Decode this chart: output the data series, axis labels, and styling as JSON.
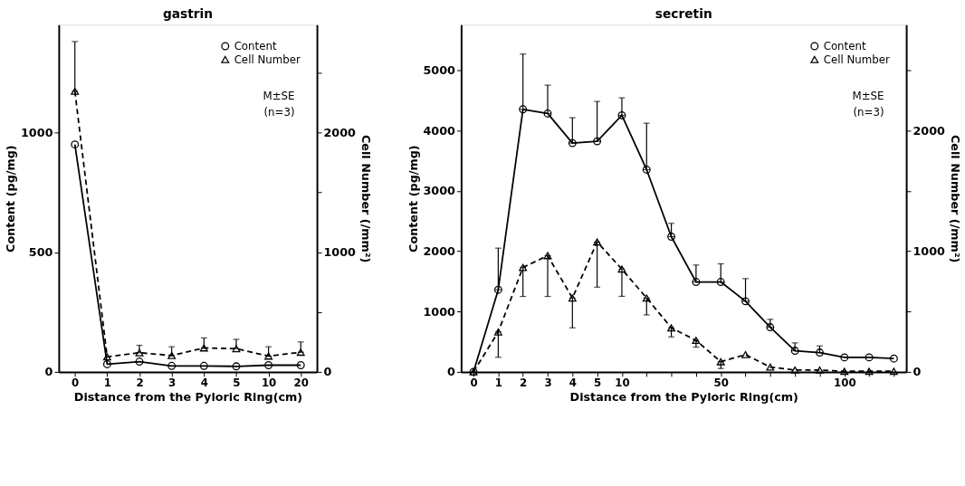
{
  "chart_data": [
    {
      "type": "line",
      "title": "gastrin",
      "xlabel": "Distance from the Pyloric Ring(cm)",
      "ylabel": "Content (pg/mg)",
      "y2label": "Cell Number (/mm²)",
      "categories": [
        "0",
        "1",
        "2",
        "3",
        "4",
        "5",
        "10",
        "20"
      ],
      "ylim": [
        0,
        1450
      ],
      "yticks": [
        0,
        500,
        1000
      ],
      "y2lim": [
        0,
        2900
      ],
      "y2ticks": [
        0,
        {
          "value": 500,
          "label": null
        },
        1000,
        {
          "value": 1500,
          "label": null
        },
        2000,
        {
          "value": 2500,
          "label": null
        }
      ],
      "legend": "top right",
      "grid": false,
      "annotations": [
        "M±SE",
        "(n=3)"
      ],
      "series": [
        {
          "name": "Content",
          "color": "#000000",
          "marker": "circle",
          "line_style": "solid",
          "values": [
            950,
            32,
            43,
            25,
            25,
            23,
            28,
            28
          ]
        },
        {
          "name": "Cell Number",
          "color": "#000000",
          "marker": "triangle",
          "line_style": "dashed",
          "axis": "y2",
          "values": [
            2345,
            125,
            160,
            136,
            200,
            194,
            132,
            164
          ],
          "errors": [
            [
              2345,
              2760
            ],
            null,
            [
              160,
              222
            ],
            [
              136,
              210
            ],
            [
              200,
              284
            ],
            [
              194,
              272
            ],
            [
              132,
              210
            ],
            [
              164,
              250
            ]
          ]
        }
      ]
    },
    {
      "type": "line",
      "title": "secretin",
      "xlabel": "Distance from the Pyloric Ring(cm)",
      "ylabel": "Content (pg/mg)",
      "y2label": "Cell Number (/mm²)",
      "categories": [
        "0",
        "1",
        "2",
        "3",
        "4",
        "5",
        "10",
        null,
        null,
        null,
        "50",
        null,
        null,
        null,
        null,
        "100",
        null,
        null
      ],
      "ylim": [
        0,
        5750
      ],
      "yticks": [
        0,
        1000,
        2000,
        3000,
        4000,
        5000
      ],
      "y2lim": [
        0,
        2875
      ],
      "y2ticks": [
        0,
        {
          "value": 500,
          "label": null
        },
        1000,
        {
          "value": 1500,
          "label": null
        },
        2000,
        {
          "value": 2500,
          "label": null
        }
      ],
      "legend": "top right",
      "grid": false,
      "annotations": [
        "M±SE",
        "(n=3)"
      ],
      "series": [
        {
          "name": "Content",
          "color": "#000000",
          "marker": "circle",
          "line_style": "solid",
          "values": [
            0,
            1360,
            4350,
            4280,
            3790,
            3820,
            4250,
            3350,
            2240,
            1490,
            1490,
            1170,
            740,
            350,
            320,
            240,
            240,
            220
          ],
          "errors": [
            null,
            [
              1360,
              2050
            ],
            [
              4350,
              5265
            ],
            [
              4280,
              4750
            ],
            [
              3790,
              4210
            ],
            [
              3820,
              4480
            ],
            [
              4250,
              4540
            ],
            [
              3350,
              4120
            ],
            [
              2240,
              2460
            ],
            [
              1490,
              1770
            ],
            [
              1490,
              1790
            ],
            [
              1170,
              1545
            ],
            [
              740,
              870
            ],
            [
              350,
              480
            ],
            [
              320,
              430
            ],
            null,
            null,
            null
          ]
        },
        {
          "name": "Cell Number",
          "color": "#000000",
          "marker": "triangle",
          "line_style": "dashed",
          "axis": "y2",
          "values": [
            0,
            331,
            865,
            963,
            612,
            1076,
            851,
            612,
            365,
            261,
            84,
            143,
            40,
            15,
            15,
            5,
            5,
            5
          ],
          "errors": [
            null,
            [
              121,
              331
            ],
            [
              625,
              865
            ],
            [
              625,
              963
            ],
            [
              365,
              612
            ],
            [
              702,
              1076
            ],
            [
              626,
              851
            ],
            [
              472,
              612
            ],
            [
              290,
              365
            ],
            [
              205,
              261
            ],
            [
              28,
              84
            ],
            null,
            null,
            null,
            null,
            null,
            null,
            null
          ]
        }
      ]
    }
  ]
}
